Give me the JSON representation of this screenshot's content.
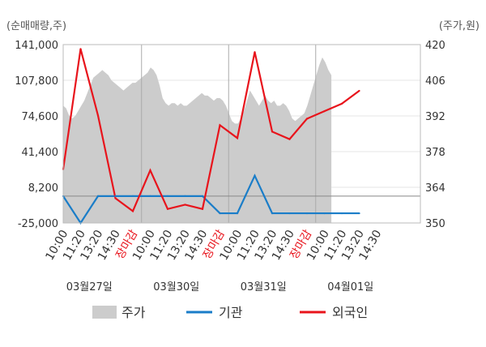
{
  "chart_data": {
    "type": "line",
    "left_axis": {
      "unit_label": "(순매매량,주)",
      "ticks": [
        "141,000",
        "107,800",
        "74,600",
        "41,400",
        "8,200",
        "-25,000"
      ],
      "min": -25000,
      "max": 141000
    },
    "right_axis": {
      "unit_label": "(주가,원)",
      "ticks": [
        "420",
        "406",
        "392",
        "378",
        "364",
        "350"
      ],
      "min": 350,
      "max": 420
    },
    "x_axis": {
      "ticks": [
        "10:00",
        "11:20",
        "13:20",
        "14:30",
        "장마감",
        "10:00",
        "11:20",
        "13:20",
        "14:30",
        "장마감",
        "10:00",
        "11:20",
        "13:20",
        "14:30",
        "장마감",
        "10:00",
        "11:20",
        "13:20",
        "14:30"
      ],
      "close_label": "장마감",
      "dates": [
        "03월27일",
        "03월30일",
        "03월31일",
        "04월01일"
      ]
    },
    "legend": [
      "주가",
      "기관",
      "외국인"
    ],
    "grid": true,
    "colors": {
      "price": "#cccccc",
      "institution": "#1a7dc8",
      "foreign": "#e8141c",
      "close_label": "#e8141c"
    },
    "series": [
      {
        "name": "기관",
        "x": [
          0,
          1,
          2,
          3,
          4,
          5,
          6,
          7,
          8,
          9,
          10,
          11,
          12,
          13,
          14,
          15,
          16,
          17
        ],
        "values": [
          0,
          -25000,
          0,
          0,
          0,
          0,
          0,
          0,
          0,
          -16000,
          -16000,
          19000,
          -16000,
          -16000,
          -16000,
          -16000,
          -16000,
          -16000
        ]
      },
      {
        "name": "외국인",
        "x": [
          0,
          1,
          2,
          3,
          4,
          5,
          6,
          7,
          8,
          9,
          10,
          11,
          12,
          13,
          14,
          15,
          16,
          17
        ],
        "values": [
          25000,
          137000,
          75000,
          -2000,
          -14000,
          24000,
          -12000,
          -8000,
          -12000,
          66000,
          54000,
          134000,
          60000,
          53000,
          72000,
          79000,
          86000,
          98000
        ]
      },
      {
        "name": "주가",
        "x_range": [
          0,
          15.4
        ],
        "values": [
          396,
          395,
          392,
          391,
          392,
          394,
          396,
          398,
          401,
          404,
          407,
          408,
          409,
          410,
          409,
          408,
          406,
          405,
          404,
          403,
          402,
          403,
          404,
          405,
          405,
          406,
          407,
          408,
          409,
          411,
          410,
          408,
          404,
          399,
          397,
          396,
          397,
          397,
          396,
          397,
          396,
          396,
          397,
          398,
          399,
          400,
          401,
          400,
          400,
          399,
          398,
          399,
          399,
          398,
          396,
          393,
          390,
          389,
          389,
          391,
          394,
          398,
          402,
          400,
          398,
          396,
          398,
          400,
          398,
          397,
          398,
          396,
          396,
          397,
          396,
          394,
          391,
          390,
          391,
          392,
          393,
          396,
          400,
          404,
          408,
          412,
          415,
          413,
          410,
          408
        ]
      }
    ]
  }
}
